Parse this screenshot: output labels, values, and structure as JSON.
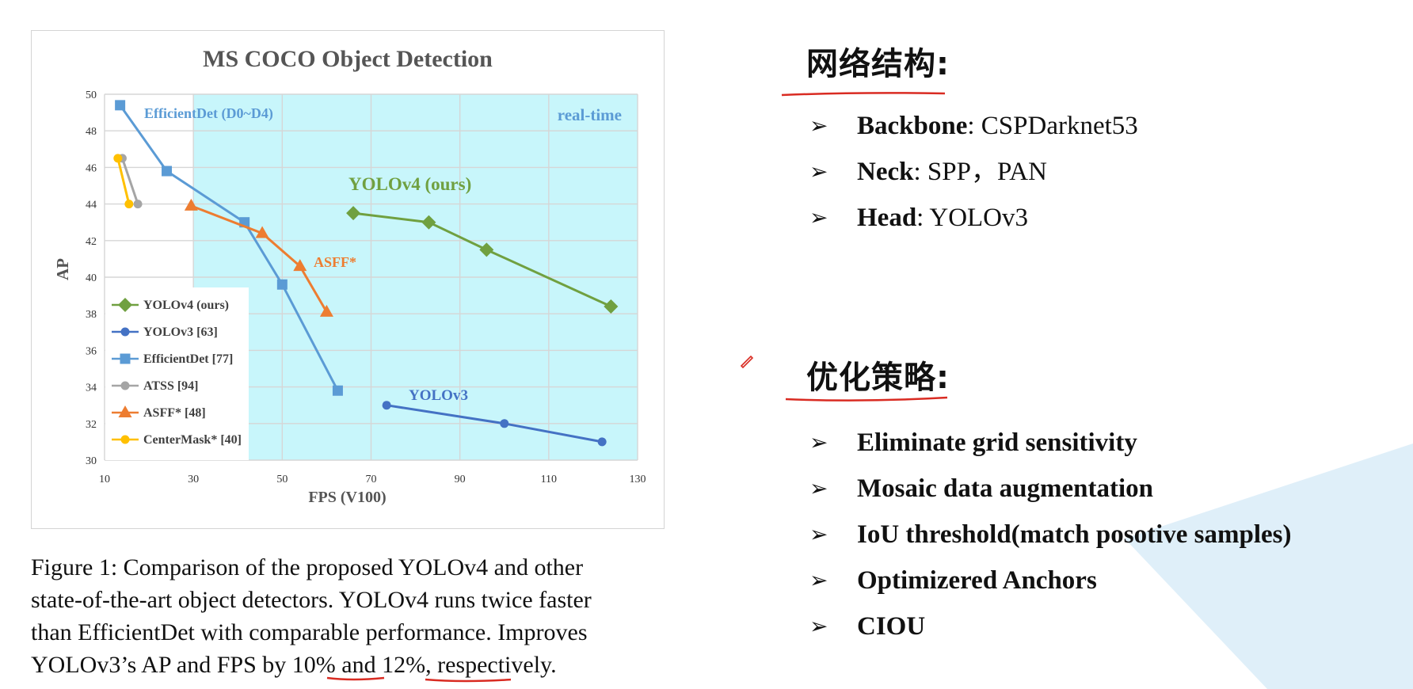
{
  "colors": {
    "realtime_band": "#c8f6fb",
    "grid": "#d6d6d6",
    "yolov4": "#70a040",
    "yolov3": "#4472c4",
    "efficientdet": "#5b9bd5",
    "atss": "#a5a5a5",
    "asff": "#ed7d31",
    "centermask": "#ffc000",
    "annotation_red": "#d92b22",
    "bg_decor": "#d9ecf8"
  },
  "chart_data": {
    "type": "line",
    "title": "MS COCO Object Detection",
    "xlabel": "FPS (V100)",
    "ylabel": "AP",
    "xlim": [
      10,
      130
    ],
    "ylim": [
      30,
      50
    ],
    "xticks": [
      "10",
      "30",
      "50",
      "70",
      "90",
      "110",
      "130"
    ],
    "yticks": [
      "30",
      "32",
      "34",
      "36",
      "38",
      "40",
      "42",
      "44",
      "46",
      "48",
      "50"
    ],
    "grid": true,
    "realtime_region": {
      "x_from": 30,
      "x_to": 130,
      "label": "real-time"
    },
    "series": [
      {
        "name": "YOLOv4 (ours)",
        "marker": "diamond",
        "color_key": "yolov4",
        "x": [
          66,
          83,
          96,
          124
        ],
        "y": [
          43.5,
          43.0,
          41.5,
          38.4
        ]
      },
      {
        "name": "YOLOv3 [63]",
        "marker": "circle",
        "color_key": "yolov3",
        "x": [
          73.5,
          100,
          122
        ],
        "y": [
          33.0,
          32.0,
          31.0
        ]
      },
      {
        "name": "EfficientDet [77]",
        "marker": "square",
        "color_key": "efficientdet",
        "x": [
          13.5,
          24,
          41.5,
          50,
          62.5
        ],
        "y": [
          49.4,
          45.8,
          43.0,
          39.6,
          33.8
        ]
      },
      {
        "name": "ATSS [94]",
        "marker": "circle",
        "color_key": "atss",
        "x": [
          14,
          17.5
        ],
        "y": [
          46.5,
          44.0
        ]
      },
      {
        "name": "ASFF* [48]",
        "marker": "triangle",
        "color_key": "asff",
        "x": [
          29.5,
          45.5,
          54,
          60
        ],
        "y": [
          43.9,
          42.4,
          40.6,
          38.1
        ]
      },
      {
        "name": "CenterMask* [40]",
        "marker": "circle",
        "color_key": "centermask",
        "x": [
          13,
          15.5
        ],
        "y": [
          46.5,
          44.0
        ]
      }
    ],
    "annotations": [
      {
        "text": "EfficientDet (D0~D4)",
        "color_key": "efficientdet"
      },
      {
        "text": "YOLOv4 (ours)",
        "color_key": "yolov4"
      },
      {
        "text": "ASFF*",
        "color_key": "asff"
      },
      {
        "text": "YOLOv3",
        "color_key": "yolov3"
      }
    ],
    "legend_placement": "lower-left"
  },
  "caption": {
    "line1": "Figure 1: Comparison of the proposed YOLOv4 and other",
    "line2": "state-of-the-art object detectors. YOLOv4 runs twice faster",
    "line3": "than EfficientDet with comparable performance. Improves",
    "line4_a": "YOLOv3’s AP and FPS by ",
    "line4_u1": "10%",
    "line4_b": " and ",
    "line4_u2": "12%",
    "line4_c": ", respectively."
  },
  "section1": {
    "heading": "网络结构:",
    "items": [
      {
        "bold": "Backbone",
        "rest": ": CSPDarknet53"
      },
      {
        "bold": "Neck",
        "rest": ": SPP，PAN"
      },
      {
        "bold": "Head",
        "rest": ": YOLOv3"
      }
    ]
  },
  "section2": {
    "heading": "优化策略:",
    "items": [
      {
        "bold": "Eliminate grid sensitivity",
        "rest": ""
      },
      {
        "bold": "Mosaic data augmentation",
        "rest": ""
      },
      {
        "bold": "IoU threshold(match posotive samples)",
        "rest": ""
      },
      {
        "bold": "Optimizered Anchors",
        "rest": ""
      },
      {
        "bold": "CIOU",
        "rest": ""
      }
    ]
  },
  "bullet_glyph": "➢"
}
